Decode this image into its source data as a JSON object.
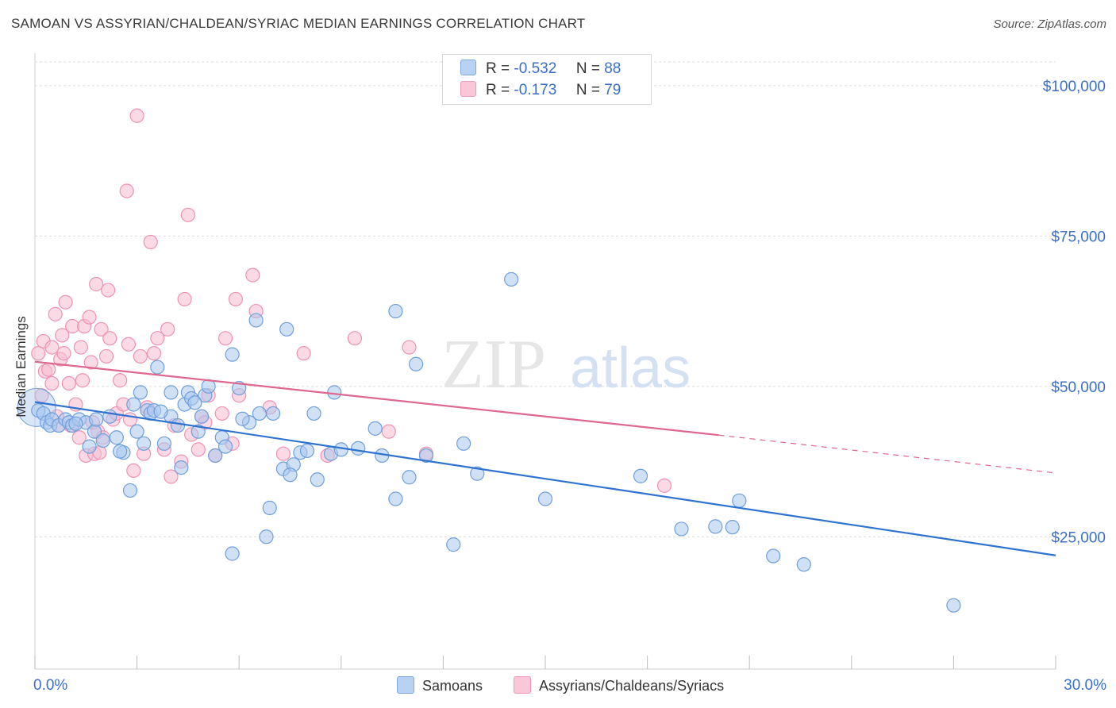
{
  "header": {
    "title": "SAMOAN VS ASSYRIAN/CHALDEAN/SYRIAC MEDIAN EARNINGS CORRELATION CHART",
    "source": "Source: ZipAtlas.com"
  },
  "watermark": {
    "zip": "ZIP",
    "atlas": "atlas"
  },
  "legend": {
    "rows": [
      {
        "r_label": "R =",
        "r_value": "-0.532",
        "n_label": "N =",
        "n_value": "88"
      },
      {
        "r_label": "R =",
        "r_value": "-0.173",
        "n_label": "N =",
        "n_value": "79"
      }
    ]
  },
  "bottom_legend": {
    "samoans": "Samoans",
    "assyrians": "Assyrians/Chaldeans/Syriacs"
  },
  "colors": {
    "blue_fill": "#a9c8ef",
    "blue_stroke": "#6f9fdc",
    "blue_line": "#2f73d0",
    "pink_fill": "#f7bcd0",
    "pink_stroke": "#ee93b3",
    "pink_line": "#e0678f",
    "axis_label": "#3a6fc9",
    "grid": "#dcdcdc"
  },
  "chart_data": {
    "type": "scatter",
    "title": "SAMOAN VS ASSYRIAN/CHALDEAN/SYRIAC MEDIAN EARNINGS CORRELATION CHART",
    "ylabel": "Median Earnings",
    "xlabel": "",
    "xlim": [
      0,
      30
    ],
    "ylim": [
      3000,
      105000
    ],
    "x_tick_labels": [
      "0.0%",
      "30.0%"
    ],
    "y_ticks": [
      25000,
      50000,
      75000,
      100000
    ],
    "y_tick_labels": [
      "$25,000",
      "$50,000",
      "$75,000",
      "$100,000"
    ],
    "grid": true,
    "legend_position": "top-center",
    "series": [
      {
        "name": "Samoans",
        "R": -0.532,
        "N": 88,
        "trend": {
          "x0": 0,
          "y0": 47400,
          "x1": 30,
          "y1": 21900
        },
        "points": [
          [
            0.1,
            46000
          ],
          [
            0.25,
            45500
          ],
          [
            0.35,
            44000
          ],
          [
            0.45,
            43500
          ],
          [
            0.5,
            44500
          ],
          [
            0.7,
            43500
          ],
          [
            0.9,
            44500
          ],
          [
            1.0,
            44000
          ],
          [
            1.1,
            43500
          ],
          [
            1.3,
            44500
          ],
          [
            1.5,
            44000
          ],
          [
            1.6,
            40000
          ],
          [
            1.75,
            42500
          ],
          [
            1.8,
            44500
          ],
          [
            2.0,
            41000
          ],
          [
            2.2,
            45000
          ],
          [
            2.4,
            41500
          ],
          [
            2.6,
            39000
          ],
          [
            2.8,
            32700
          ],
          [
            2.9,
            47000
          ],
          [
            3.0,
            42500
          ],
          [
            3.1,
            49000
          ],
          [
            3.2,
            40500
          ],
          [
            3.3,
            46000
          ],
          [
            3.4,
            45500
          ],
          [
            3.5,
            46000
          ],
          [
            3.6,
            53200
          ],
          [
            3.8,
            40500
          ],
          [
            4.0,
            45000
          ],
          [
            4.0,
            49000
          ],
          [
            4.2,
            43500
          ],
          [
            4.3,
            36500
          ],
          [
            4.4,
            47000
          ],
          [
            4.5,
            49000
          ],
          [
            4.6,
            48000
          ],
          [
            4.8,
            42500
          ],
          [
            4.9,
            45000
          ],
          [
            5.0,
            48500
          ],
          [
            5.1,
            50000
          ],
          [
            5.3,
            38500
          ],
          [
            5.5,
            41500
          ],
          [
            5.6,
            40000
          ],
          [
            5.8,
            55300
          ],
          [
            6.0,
            49700
          ],
          [
            6.3,
            44000
          ],
          [
            6.5,
            61000
          ],
          [
            6.6,
            45500
          ],
          [
            6.8,
            25000
          ],
          [
            6.9,
            29800
          ],
          [
            7.0,
            45500
          ],
          [
            7.3,
            36300
          ],
          [
            7.4,
            59500
          ],
          [
            7.6,
            37000
          ],
          [
            7.8,
            39000
          ],
          [
            7.5,
            35300
          ],
          [
            8.2,
            45500
          ],
          [
            8.3,
            34500
          ],
          [
            8.7,
            38800
          ],
          [
            8.8,
            49000
          ],
          [
            9.0,
            39500
          ],
          [
            10.0,
            43000
          ],
          [
            10.2,
            38500
          ],
          [
            10.6,
            62500
          ],
          [
            10.6,
            31300
          ],
          [
            11.0,
            34900
          ],
          [
            11.2,
            53700
          ],
          [
            11.5,
            38500
          ],
          [
            12.3,
            23700
          ],
          [
            12.6,
            40500
          ],
          [
            13.0,
            35500
          ],
          [
            14.0,
            67800
          ],
          [
            15.0,
            31300
          ],
          [
            17.8,
            35100
          ],
          [
            19.0,
            26300
          ],
          [
            20.0,
            26700
          ],
          [
            20.5,
            26600
          ],
          [
            20.7,
            31000
          ],
          [
            21.7,
            21800
          ],
          [
            22.6,
            20400
          ],
          [
            27.0,
            13600
          ],
          [
            5.8,
            22200
          ],
          [
            1.2,
            43800
          ],
          [
            2.5,
            39200
          ],
          [
            3.7,
            45800
          ],
          [
            4.7,
            47300
          ],
          [
            6.1,
            44600
          ],
          [
            8.0,
            39300
          ],
          [
            9.5,
            39700
          ]
        ]
      },
      {
        "name": "Assyrians/Chaldeans/Syriacs",
        "R": -0.173,
        "N": 79,
        "trend": {
          "x0": 0,
          "y0": 54100,
          "x1": 20.1,
          "y1": 41900,
          "dash_x1": 30,
          "dash_y1": 35600
        },
        "points": [
          [
            0.1,
            55500
          ],
          [
            0.2,
            48500
          ],
          [
            0.25,
            57500
          ],
          [
            0.3,
            52500
          ],
          [
            0.4,
            52800
          ],
          [
            0.5,
            50500
          ],
          [
            0.5,
            56500
          ],
          [
            0.6,
            62000
          ],
          [
            0.65,
            45000
          ],
          [
            0.7,
            43500
          ],
          [
            0.75,
            54500
          ],
          [
            0.8,
            58500
          ],
          [
            0.85,
            55500
          ],
          [
            0.9,
            64000
          ],
          [
            1.0,
            50500
          ],
          [
            1.05,
            43500
          ],
          [
            1.1,
            60000
          ],
          [
            1.2,
            47000
          ],
          [
            1.3,
            41500
          ],
          [
            1.35,
            56500
          ],
          [
            1.4,
            51000
          ],
          [
            1.45,
            60000
          ],
          [
            1.5,
            38500
          ],
          [
            1.6,
            61500
          ],
          [
            1.65,
            54000
          ],
          [
            1.7,
            44000
          ],
          [
            1.75,
            38800
          ],
          [
            1.8,
            67000
          ],
          [
            1.85,
            42500
          ],
          [
            1.9,
            39000
          ],
          [
            1.95,
            59500
          ],
          [
            2.0,
            41500
          ],
          [
            2.1,
            55000
          ],
          [
            2.15,
            66000
          ],
          [
            2.2,
            58000
          ],
          [
            2.3,
            44500
          ],
          [
            2.4,
            45500
          ],
          [
            2.5,
            51000
          ],
          [
            2.6,
            47000
          ],
          [
            2.7,
            82500
          ],
          [
            2.75,
            57000
          ],
          [
            2.8,
            44500
          ],
          [
            2.9,
            36000
          ],
          [
            3.0,
            95000
          ],
          [
            3.1,
            55000
          ],
          [
            3.2,
            38800
          ],
          [
            3.3,
            46500
          ],
          [
            3.4,
            74000
          ],
          [
            3.5,
            55500
          ],
          [
            3.6,
            58000
          ],
          [
            3.8,
            39500
          ],
          [
            3.9,
            59500
          ],
          [
            4.0,
            35000
          ],
          [
            4.1,
            43500
          ],
          [
            4.3,
            37500
          ],
          [
            4.4,
            64500
          ],
          [
            4.5,
            78500
          ],
          [
            4.6,
            42000
          ],
          [
            4.8,
            39500
          ],
          [
            4.9,
            45000
          ],
          [
            5.0,
            44000
          ],
          [
            5.1,
            48500
          ],
          [
            5.3,
            38500
          ],
          [
            5.5,
            45500
          ],
          [
            5.6,
            58000
          ],
          [
            5.8,
            40500
          ],
          [
            5.9,
            64500
          ],
          [
            6.0,
            48500
          ],
          [
            6.4,
            68500
          ],
          [
            6.5,
            62500
          ],
          [
            6.9,
            46500
          ],
          [
            7.3,
            38800
          ],
          [
            7.9,
            55500
          ],
          [
            8.6,
            38500
          ],
          [
            9.4,
            58000
          ],
          [
            10.4,
            42500
          ],
          [
            11.0,
            56500
          ],
          [
            11.5,
            38800
          ],
          [
            18.5,
            33500
          ]
        ]
      }
    ]
  }
}
